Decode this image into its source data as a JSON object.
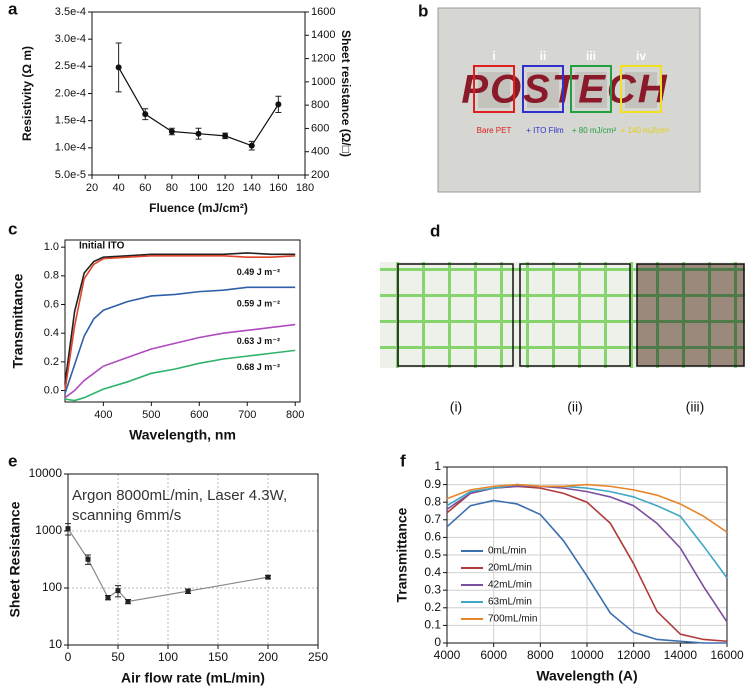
{
  "chart_data": [
    {
      "type": "line",
      "panel_label": "a",
      "xlabel": "Fluence (mJ/cm²)",
      "ylabel": "Resistivity (Ω m)",
      "y2label": "Sheet resistance (Ω/□)",
      "x": [
        40,
        60,
        80,
        100,
        120,
        140,
        160
      ],
      "xlim": [
        20,
        180
      ],
      "xticks": [
        20,
        40,
        60,
        80,
        100,
        120,
        140,
        160,
        180
      ],
      "ylim": [
        5e-05,
        0.00035
      ],
      "yticks": [
        {
          "value": 5e-05,
          "label": "5.0e-5"
        },
        {
          "value": 0.0001,
          "label": "1.0e-4"
        },
        {
          "value": 0.00015,
          "label": "1.5e-4"
        },
        {
          "value": 0.0002,
          "label": "2.0e-4"
        },
        {
          "value": 0.00025,
          "label": "2.5e-4"
        },
        {
          "value": 0.0003,
          "label": "3.0e-4"
        },
        {
          "value": 0.00035,
          "label": "3.5e-4"
        }
      ],
      "y2lim": [
        200,
        1600
      ],
      "y2ticks": [
        200,
        400,
        600,
        800,
        1000,
        1200,
        1400,
        1600
      ],
      "marker": "circle",
      "series": [
        {
          "color": "#111111",
          "values": [
            0.000248,
            0.000162,
            0.00013,
            0.000126,
            0.000122,
            0.000104,
            0.00018
          ],
          "errors": [
            4.5e-05,
            1e-05,
            6e-06,
            1e-05,
            5e-06,
            8e-06,
            1.5e-05
          ]
        }
      ]
    },
    {
      "type": "line",
      "panel_label": "c",
      "xlabel": "Wavelength, nm",
      "ylabel": "Transmittance",
      "x": [
        320,
        340,
        360,
        380,
        400,
        450,
        500,
        550,
        600,
        650,
        700,
        750,
        800
      ],
      "xlim": [
        320,
        810
      ],
      "xticks": [
        400,
        500,
        600,
        700,
        800
      ],
      "ylim": [
        -0.08,
        1.05
      ],
      "yticks": [
        {
          "value": 0,
          "label": "0.0"
        },
        0.2,
        0.4,
        0.6,
        0.8,
        {
          "value": 1,
          "label": "1.0"
        }
      ],
      "series": [
        {
          "name": "Initial ITO",
          "color": "#222222",
          "values": [
            0.05,
            0.55,
            0.82,
            0.9,
            0.93,
            0.94,
            0.95,
            0.95,
            0.95,
            0.95,
            0.96,
            0.95,
            0.95
          ]
        },
        {
          "name": "0.49 J m⁻²",
          "color": "#e0442a",
          "values": [
            0.0,
            0.45,
            0.78,
            0.88,
            0.92,
            0.93,
            0.94,
            0.94,
            0.94,
            0.94,
            0.93,
            0.93,
            0.94
          ]
        },
        {
          "name": "0.59 J m⁻²",
          "color": "#2f5fa8",
          "values": [
            -0.02,
            0.18,
            0.38,
            0.5,
            0.56,
            0.62,
            0.66,
            0.67,
            0.69,
            0.7,
            0.72,
            0.72,
            0.72
          ]
        },
        {
          "name": "0.63 J m⁻²",
          "color": "#b04ac0",
          "values": [
            -0.05,
            0.0,
            0.07,
            0.12,
            0.17,
            0.23,
            0.29,
            0.33,
            0.37,
            0.4,
            0.42,
            0.44,
            0.46
          ]
        },
        {
          "name": "0.68 J m⁻²",
          "color": "#2db36a",
          "values": [
            -0.06,
            -0.07,
            -0.05,
            -0.02,
            0.01,
            0.06,
            0.12,
            0.15,
            0.19,
            0.22,
            0.24,
            0.26,
            0.28
          ]
        }
      ]
    },
    {
      "type": "line",
      "panel_label": "e",
      "xlabel": "Air flow rate (mL/min)",
      "ylabel": "Sheet Resistance",
      "annotation": [
        "Argon 8000mL/min, Laser 4.3W,",
        "scanning 6mm/s"
      ],
      "x": [
        0,
        20,
        40,
        50,
        60,
        120,
        200
      ],
      "xlim": [
        0,
        250
      ],
      "xticks": [
        0,
        50,
        100,
        150,
        200,
        250
      ],
      "ylim": [
        10,
        10000
      ],
      "yticks": [
        10,
        100,
        1000,
        10000
      ],
      "log_y": true,
      "grid": true,
      "marker": "square",
      "series": [
        {
          "color": "#888888",
          "values": [
            1100,
            320,
            68,
            90,
            58,
            88,
            155
          ],
          "errors": [
            250,
            60,
            6,
            20,
            5,
            8,
            10
          ]
        }
      ]
    },
    {
      "type": "line",
      "panel_label": "f",
      "xlabel": "Wavelength (A)",
      "ylabel": "Transmittance",
      "legend": "lower left",
      "grid": true,
      "x": [
        4000,
        5000,
        6000,
        7000,
        8000,
        9000,
        10000,
        11000,
        12000,
        13000,
        14000,
        15000,
        16000
      ],
      "xlim": [
        4000,
        16000
      ],
      "xticks": [
        4000,
        6000,
        8000,
        10000,
        12000,
        14000,
        16000
      ],
      "ylim": [
        0,
        1
      ],
      "yticks": [
        0,
        0.1,
        0.2,
        0.3,
        0.4,
        0.5,
        0.6,
        0.7,
        0.8,
        0.9,
        1
      ],
      "series": [
        {
          "name": "0mL/min",
          "color": "#3c6fb0",
          "values": [
            0.66,
            0.78,
            0.81,
            0.79,
            0.73,
            0.58,
            0.38,
            0.17,
            0.06,
            0.02,
            0.01,
            0.0,
            0.0
          ]
        },
        {
          "name": "20mL/min",
          "color": "#b03a3a",
          "values": [
            0.74,
            0.85,
            0.88,
            0.89,
            0.88,
            0.85,
            0.8,
            0.68,
            0.45,
            0.18,
            0.05,
            0.02,
            0.01
          ]
        },
        {
          "name": "42mL/min",
          "color": "#7b4f9d",
          "values": [
            0.76,
            0.85,
            0.88,
            0.89,
            0.89,
            0.88,
            0.86,
            0.83,
            0.78,
            0.68,
            0.54,
            0.32,
            0.12
          ]
        },
        {
          "name": "63mL/min",
          "color": "#3fa7c4",
          "values": [
            0.78,
            0.86,
            0.88,
            0.9,
            0.89,
            0.89,
            0.88,
            0.86,
            0.83,
            0.78,
            0.72,
            0.55,
            0.37
          ]
        },
        {
          "name": "700mL/min",
          "color": "#e8852b",
          "values": [
            0.82,
            0.87,
            0.89,
            0.9,
            0.89,
            0.89,
            0.9,
            0.89,
            0.87,
            0.84,
            0.79,
            0.72,
            0.63
          ]
        }
      ]
    }
  ],
  "panel_b": {
    "panel_label": "b",
    "logo": "POSTECH",
    "samples": [
      {
        "label": "i",
        "caption": "Bare PET"
      },
      {
        "label": "ii",
        "caption": "+ ITO Film"
      },
      {
        "label": "iii",
        "caption": "+ 80 mJ/cm²"
      },
      {
        "label": "iv",
        "caption": "+ 140 mJ/cm²"
      }
    ]
  },
  "panel_d": {
    "panel_label": "d",
    "captions": [
      "(i)",
      "(ii)",
      "(iii)"
    ]
  }
}
